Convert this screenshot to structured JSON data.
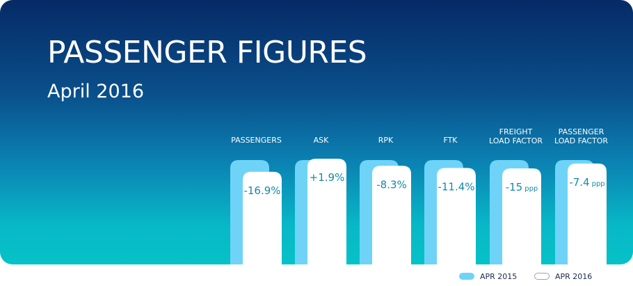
{
  "header": {
    "title": "PASSENGER FIGURES",
    "subtitle": "April 2016"
  },
  "colors": {
    "apr2015": "#6fd3f7",
    "apr2016": "#ffffff",
    "value_text": "#138aa6"
  },
  "chart_data": {
    "type": "bar",
    "title": "PASSENGER FIGURES",
    "subtitle": "April 2016",
    "categories": [
      [
        "PASSENGERS"
      ],
      [
        "ASK"
      ],
      [
        "RPK"
      ],
      [
        "FTK"
      ],
      [
        "FREIGHT",
        "LOAD FACTOR"
      ],
      [
        "PASSENGER",
        "LOAD FACTOR"
      ]
    ],
    "series": [
      {
        "name": "APR 2015",
        "values": [
          1,
          1,
          1,
          1,
          1,
          1
        ]
      },
      {
        "name": "APR 2016",
        "values": [
          0.831,
          1.019,
          0.917,
          0.886,
          0.88,
          0.95
        ]
      }
    ],
    "change_labels": [
      {
        "value": "-16.9%",
        "unit": ""
      },
      {
        "value": "+1.9%",
        "unit": ""
      },
      {
        "value": "-8.3%",
        "unit": ""
      },
      {
        "value": "-11.4%",
        "unit": ""
      },
      {
        "value": "-15",
        "unit": "ppp"
      },
      {
        "value": "-7.4",
        "unit": "ppp"
      }
    ],
    "legend": [
      "APR 2015",
      "APR 2016"
    ],
    "legend_position": "bottom-right",
    "grid": false
  }
}
